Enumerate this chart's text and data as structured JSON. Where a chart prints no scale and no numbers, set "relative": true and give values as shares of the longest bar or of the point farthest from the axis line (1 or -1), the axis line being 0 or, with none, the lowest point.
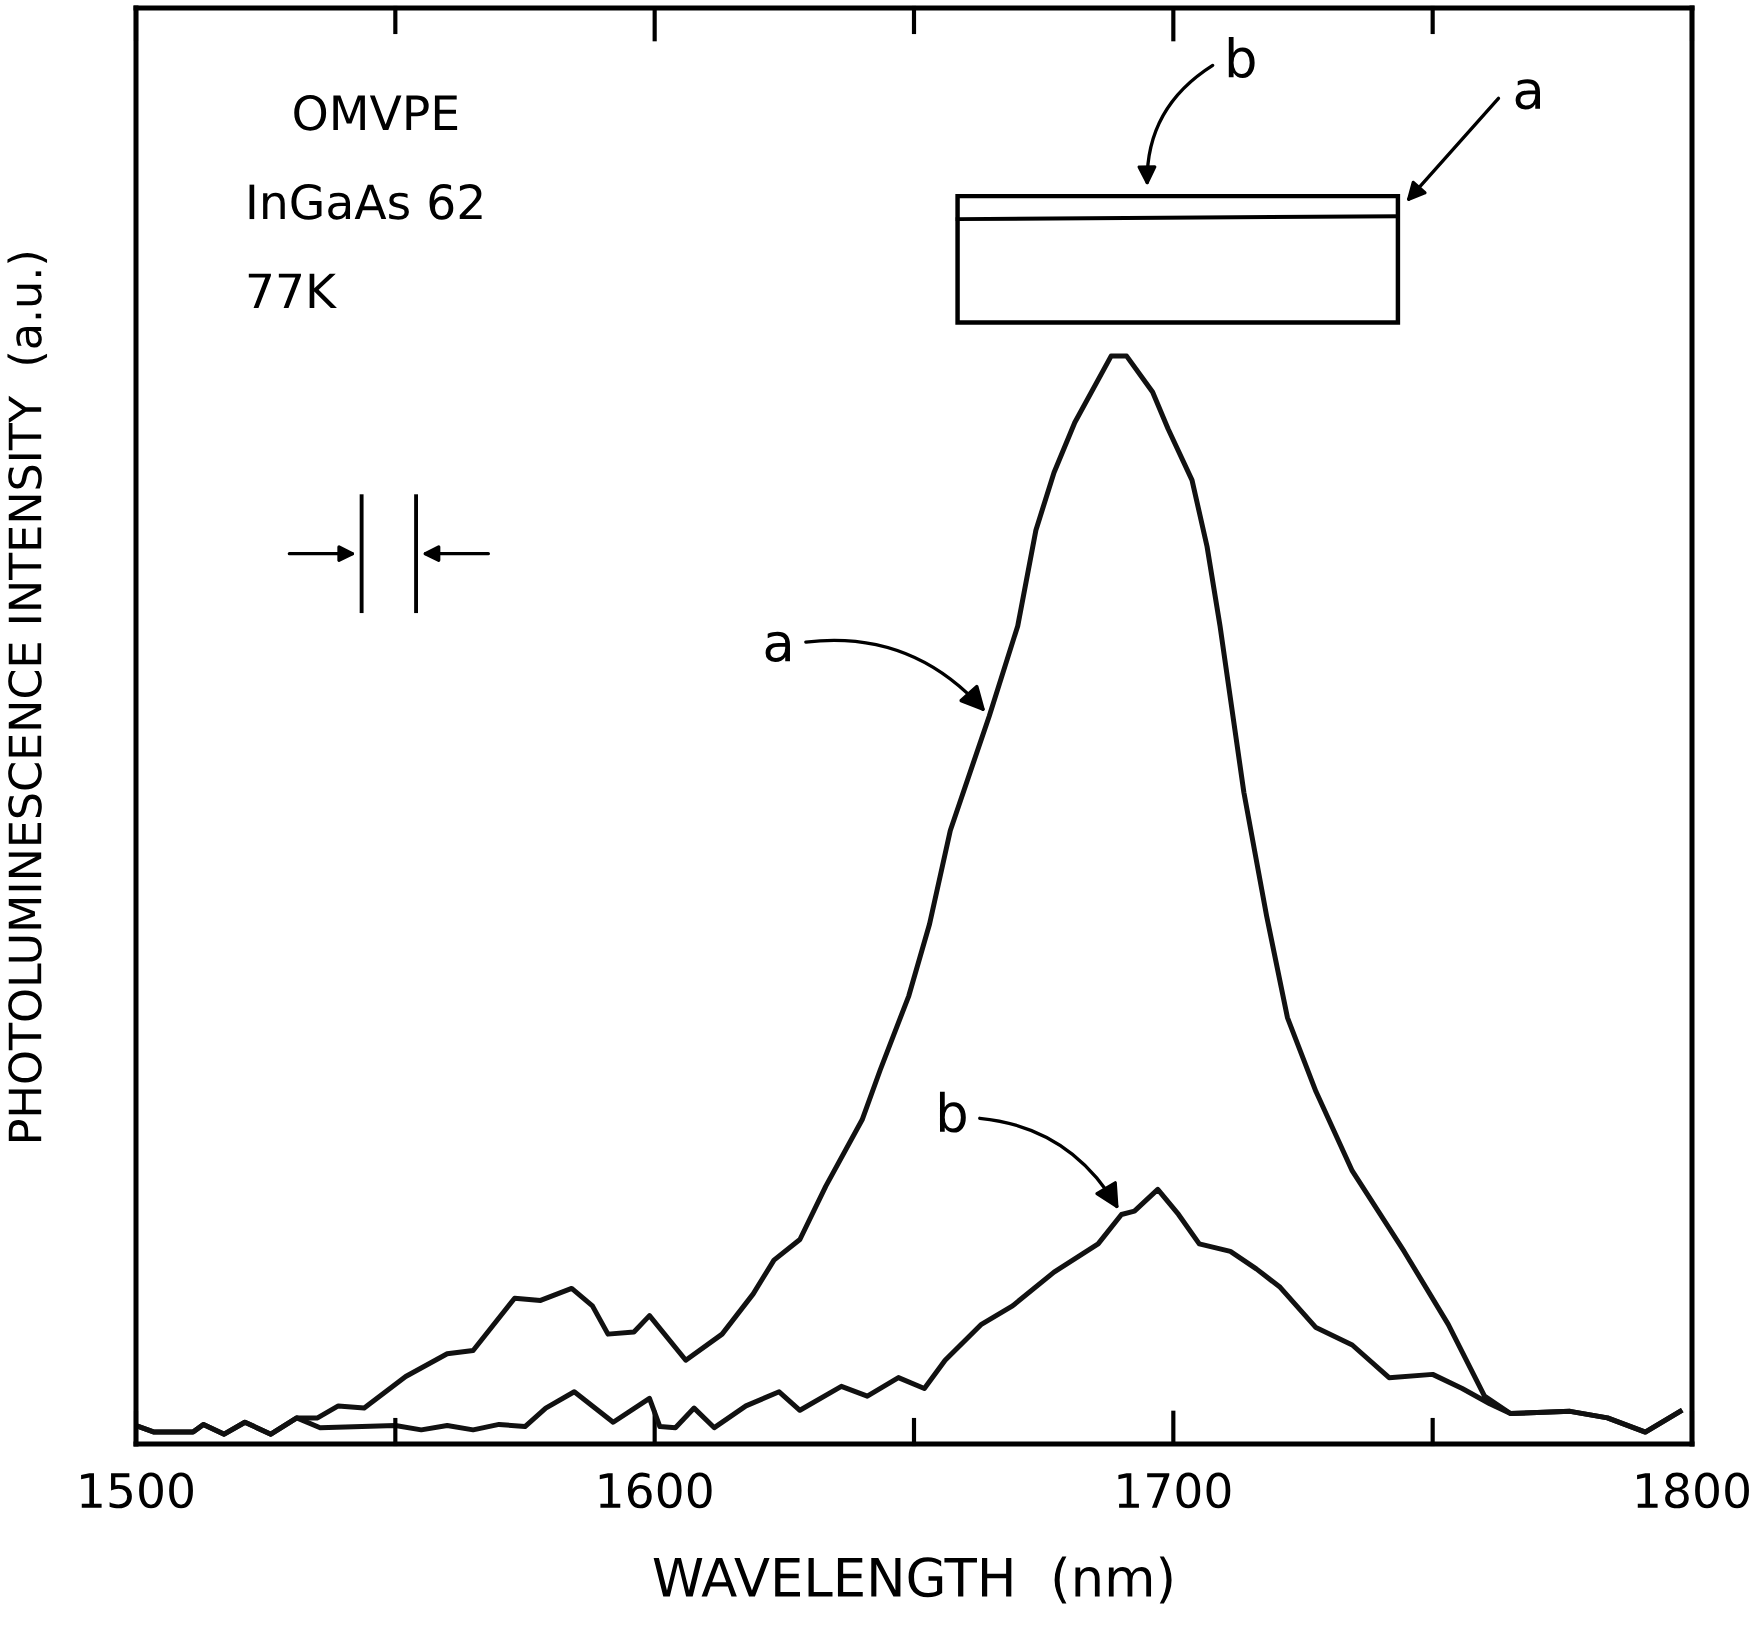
{
  "chart_data": {
    "type": "line",
    "relative": true,
    "xlabel": "WAVELENGTH  (nm)",
    "ylabel": "PHOTOLUMINESCENCE INTENSITY  (a.u.)",
    "xlim": [
      1500,
      1800
    ],
    "xticks": [
      1500,
      {
        "value": 1550,
        "label": null
      },
      1600,
      {
        "value": 1650,
        "label": null
      },
      1700,
      {
        "value": 1750,
        "label": null
      },
      1800
    ],
    "tick_labels": "x",
    "grid": false,
    "marker": "none",
    "line_style": "solid",
    "series": [
      {
        "color": "#111111",
        "x": [
          1500,
          1503.5,
          1511,
          1513,
          1517,
          1521,
          1526,
          1531,
          1535,
          1539,
          1544,
          1552,
          1560,
          1565,
          1573,
          1578,
          1584,
          1588,
          1591,
          1596,
          1599,
          1606,
          1613,
          1619,
          1623,
          1628,
          1633,
          1640,
          1643.5,
          1649,
          1653,
          1657,
          1664.5,
          1670,
          1673.5,
          1677,
          1681,
          1688,
          1691,
          1696,
          1699,
          1703.6,
          1706.5,
          1709,
          1713.6,
          1718,
          1722,
          1727.5,
          1734.5,
          1744.5,
          1753,
          1760,
          1765,
          1776.5,
          1783.7,
          1791,
          1797.7
        ],
        "values": [
          0.017,
          0.011,
          0.011,
          0.018,
          0.009,
          0.02,
          0.009,
          0.024,
          0.024,
          0.035,
          0.033,
          0.062,
          0.083,
          0.086,
          0.134,
          0.132,
          0.143,
          0.127,
          0.101,
          0.103,
          0.118,
          0.077,
          0.101,
          0.138,
          0.169,
          0.188,
          0.237,
          0.298,
          0.344,
          0.412,
          0.478,
          0.564,
          0.669,
          0.752,
          0.84,
          0.893,
          0.939,
          1.0,
          1.0,
          0.967,
          0.933,
          0.886,
          0.825,
          0.752,
          0.599,
          0.485,
          0.392,
          0.324,
          0.251,
          0.177,
          0.11,
          0.044,
          0.028,
          0.03,
          0.024,
          0.011,
          0.03
        ]
      },
      {
        "color": "#111111",
        "x": [
          1500,
          1503.5,
          1511,
          1513,
          1517,
          1521,
          1526,
          1531,
          1535.5,
          1550,
          1555,
          1560,
          1565,
          1570,
          1575,
          1579,
          1584.5,
          1588,
          1592,
          1599,
          1601,
          1604,
          1607.6,
          1611.5,
          1617.6,
          1624,
          1628,
          1636,
          1641,
          1647,
          1652,
          1656,
          1663,
          1669,
          1677,
          1685.5,
          1690,
          1692.5,
          1697,
          1701,
          1705,
          1711,
          1716,
          1720.6,
          1727.5,
          1734.5,
          1741.6,
          1750,
          1755.7,
          1761,
          1765,
          1776.5,
          1783.7,
          1791,
          1797.7
        ],
        "values": [
          0.017,
          0.011,
          0.011,
          0.018,
          0.009,
          0.02,
          0.009,
          0.024,
          0.015,
          0.017,
          0.013,
          0.017,
          0.013,
          0.018,
          0.016,
          0.033,
          0.048,
          0.035,
          0.02,
          0.042,
          0.016,
          0.015,
          0.033,
          0.015,
          0.035,
          0.048,
          0.031,
          0.053,
          0.044,
          0.061,
          0.051,
          0.077,
          0.11,
          0.127,
          0.158,
          0.184,
          0.211,
          0.214,
          0.234,
          0.211,
          0.184,
          0.177,
          0.161,
          0.144,
          0.107,
          0.091,
          0.061,
          0.064,
          0.051,
          0.037,
          0.028,
          0.03,
          0.024,
          0.011,
          0.03
        ]
      }
    ],
    "annotations": [
      "OMVPE",
      "InGaAs 62",
      "77K",
      {
        "text": "a",
        "x": 1664.5,
        "y": 0.669
      },
      {
        "text": "b",
        "x": 1690,
        "y": 0.211
      },
      "b",
      "a"
    ]
  }
}
